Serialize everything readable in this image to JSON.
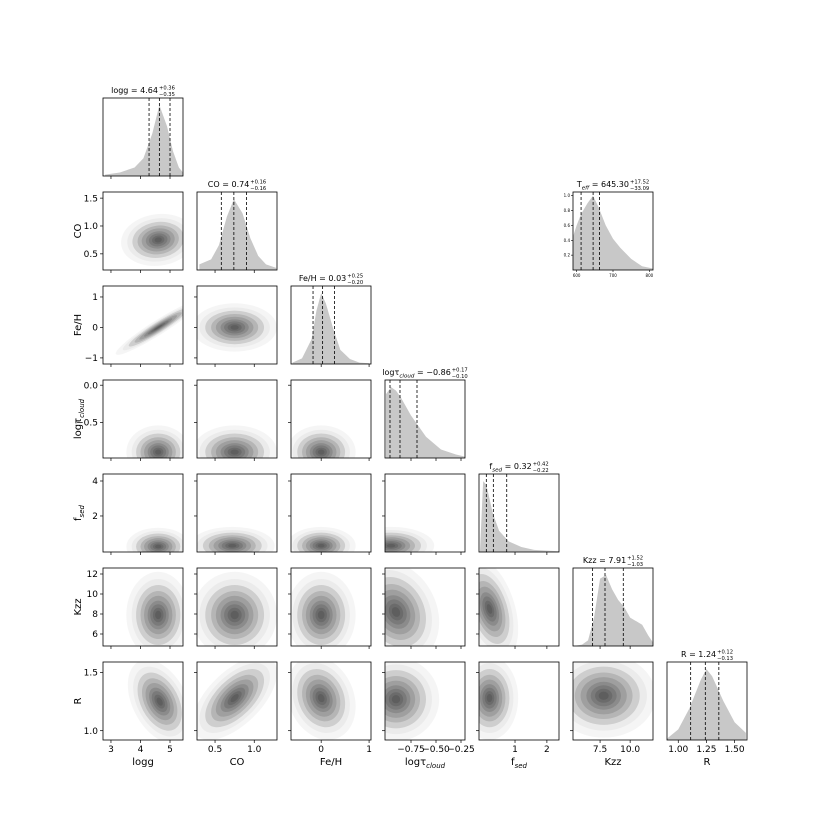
{
  "chart_data": [
    {
      "type": "corner",
      "marginal_ylim": [
        0,
        1.1
      ],
      "variables": [
        {
          "label": {
            "text": "logg"
          },
          "xlim": [
            2.73,
            5.44
          ],
          "xticks": [
            3,
            4,
            5
          ]
        },
        {
          "label": {
            "text": "CO"
          },
          "xlim": [
            0.27,
            1.29
          ],
          "xticks": [
            0.5,
            {
              "value": 1,
              "label": "1.0"
            }
          ],
          "ylim": [
            0.21,
            1.61
          ],
          "yticks": [
            0.5,
            {
              "value": 1,
              "label": "1.0"
            },
            1.5
          ]
        },
        {
          "label": {
            "text": "Fe/H"
          },
          "xlim": [
            -0.63,
            1.04
          ],
          "xticks": [
            0,
            1
          ],
          "ylim": [
            -1.2,
            1.36
          ],
          "yticks": [
            {
              "value": -1,
              "label": "−1"
            },
            0,
            1
          ]
        },
        {
          "label": {
            "text": "logτ",
            "sub": "cloud"
          },
          "xlim": [
            -1.01,
            -0.21
          ],
          "xticks": [
            {
              "value": -0.75,
              "label": "−0.75"
            },
            {
              "value": -0.5,
              "label": "−0.50"
            },
            {
              "value": -0.25,
              "label": "−0.25"
            }
          ],
          "ylim": [
            -0.98,
            0.07
          ],
          "yticks": [
            {
              "value": -0.5,
              "label": "−0.5"
            },
            {
              "value": 0,
              "label": "0.0"
            }
          ]
        },
        {
          "label": {
            "text": "f",
            "sub": "sed"
          },
          "xlim": [
            -0.13,
            2.38
          ],
          "xticks": [
            1,
            2
          ],
          "ylim": [
            -0.06,
            4.4
          ],
          "yticks": [
            2,
            4
          ]
        },
        {
          "label": {
            "text": "Kzz"
          },
          "xlim": [
            5.25,
            11.9
          ],
          "xticks": [
            7.5,
            {
              "value": 10,
              "label": "10.0"
            }
          ],
          "ylim": [
            4.8,
            12.6
          ],
          "yticks": [
            6,
            8,
            10,
            12
          ]
        },
        {
          "label": {
            "text": "R"
          },
          "xlim": [
            0.9,
            1.61
          ],
          "xticks": [
            {
              "value": 1,
              "label": "1.00"
            },
            1.25,
            {
              "value": 1.5,
              "label": "1.50"
            }
          ],
          "ylim": [
            0.92,
            1.59
          ],
          "yticks": [
            {
              "value": 1,
              "label": "1.0"
            },
            1.5
          ]
        }
      ],
      "marginals": [
        {
          "title": {
            "text": "logg = 4.64",
            "plus": "+0.36",
            "minus": "−0.35"
          },
          "quantiles": [
            4.29,
            4.64,
            5.0
          ],
          "x": [
            2.8,
            3.3,
            3.8,
            4.1,
            4.4,
            4.64,
            4.9,
            5.1,
            5.3,
            5.44
          ],
          "values": [
            0.02,
            0.05,
            0.12,
            0.25,
            0.6,
            1.0,
            0.7,
            0.35,
            0.12,
            0.05
          ]
        },
        {
          "title": {
            "text": "CO = 0.74",
            "plus": "+0.16",
            "minus": "−0.16"
          },
          "quantiles": [
            0.58,
            0.74,
            0.9
          ],
          "x": [
            0.3,
            0.45,
            0.55,
            0.65,
            0.74,
            0.85,
            0.95,
            1.05,
            1.15,
            1.28
          ],
          "values": [
            0.08,
            0.15,
            0.35,
            0.75,
            1.0,
            0.8,
            0.45,
            0.2,
            0.08,
            0.03
          ]
        },
        {
          "title": {
            "text": "Fe/H = 0.03",
            "plus": "+0.25",
            "minus": "−0.20"
          },
          "quantiles": [
            -0.17,
            0.03,
            0.28
          ],
          "x": [
            -0.6,
            -0.4,
            -0.2,
            -0.1,
            0.0,
            0.1,
            0.25,
            0.4,
            0.6,
            0.8,
            1.0
          ],
          "values": [
            0.02,
            0.08,
            0.35,
            0.75,
            1.0,
            0.85,
            0.5,
            0.2,
            0.07,
            0.02,
            0.01
          ]
        },
        {
          "title": {
            "text": "logτ",
            "sub": "cloud",
            "rest": " = −0.86",
            "plus": "+0.17",
            "minus": "−0.10"
          },
          "quantiles": [
            -0.96,
            -0.86,
            -0.69
          ],
          "x": [
            -1.0,
            -0.95,
            -0.9,
            -0.85,
            -0.75,
            -0.6,
            -0.45,
            -0.3,
            -0.21
          ],
          "values": [
            0.9,
            1.0,
            0.95,
            0.85,
            0.6,
            0.3,
            0.12,
            0.05,
            0.02
          ]
        },
        {
          "title": {
            "text": "f",
            "sub": "sed",
            "rest": " = 0.32",
            "plus": "+0.42",
            "minus": "−0.22"
          },
          "quantiles": [
            0.1,
            0.32,
            0.74
          ],
          "x": [
            -0.1,
            0.0,
            0.1,
            0.3,
            0.5,
            0.8,
            1.2,
            1.6,
            2.0,
            2.38
          ],
          "values": [
            0,
            1.0,
            0.95,
            0.55,
            0.3,
            0.15,
            0.07,
            0.03,
            0.02,
            0.01
          ]
        },
        {
          "title": {
            "text": "Kzz = 7.91",
            "plus": "+1.52",
            "minus": "−1.03"
          },
          "quantiles": [
            6.88,
            7.91,
            9.43
          ],
          "x": [
            5.3,
            6.0,
            6.5,
            7.0,
            7.5,
            8.0,
            8.5,
            9.0,
            9.5,
            10.0,
            10.5,
            11.0,
            11.5,
            11.9
          ],
          "values": [
            0,
            0.02,
            0.08,
            0.4,
            0.95,
            1.0,
            0.8,
            0.65,
            0.55,
            0.4,
            0.35,
            0.3,
            0.15,
            0.05
          ]
        },
        {
          "title": {
            "text": "R = 1.24",
            "plus": "+0.12",
            "minus": "−0.13"
          },
          "quantiles": [
            1.11,
            1.24,
            1.36
          ],
          "x": [
            0.9,
            1.0,
            1.1,
            1.2,
            1.25,
            1.3,
            1.4,
            1.5,
            1.6
          ],
          "values": [
            0.02,
            0.15,
            0.45,
            0.85,
            1.0,
            0.9,
            0.55,
            0.25,
            0.1
          ]
        }
      ],
      "pairs": [
        [
          {
            "center": [
              4.6,
              0.75
            ],
            "spread": [
              0.35,
              0.13
            ],
            "rho": 0.1
          }
        ],
        [
          {
            "center": [
              4.6,
              0.0
            ],
            "spread": [
              0.4,
              0.25
            ],
            "rho": 0.95
          },
          {
            "center": [
              0.75,
              0.0
            ],
            "spread": [
              0.15,
              0.22
            ],
            "rho": 0
          }
        ],
        [
          {
            "center": [
              4.6,
              -0.9
            ],
            "spread": [
              0.3,
              0.1
            ],
            "rho": 0
          },
          {
            "center": [
              0.75,
              -0.9
            ],
            "spread": [
              0.15,
              0.1
            ],
            "rho": 0
          },
          {
            "center": [
              0.0,
              -0.9
            ],
            "spread": [
              0.2,
              0.1
            ],
            "rho": 0
          }
        ],
        [
          {
            "center": [
              4.6,
              0.25
            ],
            "spread": [
              0.3,
              0.3
            ],
            "rho": 0
          },
          {
            "center": [
              0.72,
              0.3
            ],
            "spread": [
              0.15,
              0.3
            ],
            "rho": 0
          },
          {
            "center": [
              0.0,
              0.3
            ],
            "spread": [
              0.2,
              0.3
            ],
            "rho": 0
          },
          {
            "center": [
              -0.95,
              0.3
            ],
            "spread": [
              0.12,
              0.3
            ],
            "rho": 0
          }
        ],
        [
          {
            "center": [
              4.6,
              7.9
            ],
            "spread": [
              0.3,
              1.2
            ],
            "rho": 0
          },
          {
            "center": [
              0.75,
              7.9
            ],
            "spread": [
              0.15,
              1.2
            ],
            "rho": 0
          },
          {
            "center": [
              0.0,
              7.9
            ],
            "spread": [
              0.2,
              1.2
            ],
            "rho": 0
          },
          {
            "center": [
              -0.9,
              8.2
            ],
            "spread": [
              0.12,
              1.4
            ],
            "rho": -0.2
          },
          {
            "center": [
              0.2,
              8.5
            ],
            "spread": [
              0.25,
              1.4
            ],
            "rho": -0.4
          }
        ],
        [
          {
            "center": [
              4.65,
              1.25
            ],
            "spread": [
              0.3,
              0.1
            ],
            "rho": -0.4
          },
          {
            "center": [
              0.75,
              1.28
            ],
            "spread": [
              0.15,
              0.1
            ],
            "rho": 0.6
          },
          {
            "center": [
              0.0,
              1.28
            ],
            "spread": [
              0.2,
              0.1
            ],
            "rho": -0.2
          },
          {
            "center": [
              -0.9,
              1.27
            ],
            "spread": [
              0.12,
              0.1
            ],
            "rho": 0
          },
          {
            "center": [
              0.2,
              1.28
            ],
            "spread": [
              0.25,
              0.1
            ],
            "rho": 0
          },
          {
            "center": [
              7.8,
              1.3
            ],
            "spread": [
              1.2,
              0.1
            ],
            "rho": 0
          }
        ]
      ]
    },
    {
      "type": "area",
      "title": {
        "text": "T",
        "sub": "eff",
        "rest": " = 645.30",
        "plus": "+17.52",
        "minus": "−33.09"
      },
      "quantiles": [
        612.21,
        645.3,
        662.82
      ],
      "x": [
        590,
        600,
        612,
        630,
        645,
        660,
        680,
        700,
        720,
        750,
        780,
        810
      ],
      "values": [
        0.45,
        0.6,
        0.75,
        0.9,
        1.0,
        0.85,
        0.6,
        0.42,
        0.3,
        0.15,
        0.05,
        0.02
      ],
      "xlim": [
        590,
        810
      ],
      "ylim": [
        0,
        1.05
      ],
      "xticks": [
        600,
        700,
        800
      ],
      "yticks": [
        0.2,
        0.4,
        0.6,
        0.8,
        {
          "value": 1,
          "label": "1.0"
        }
      ]
    }
  ]
}
